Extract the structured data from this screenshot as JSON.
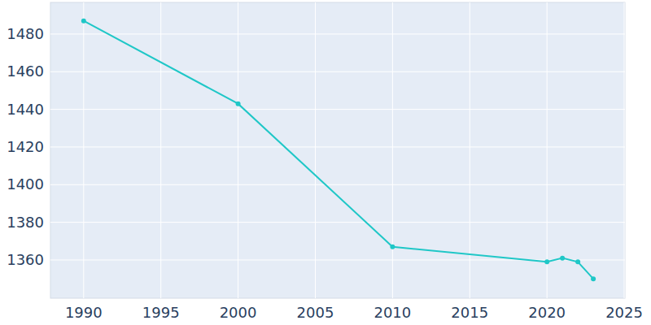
{
  "chart_data": {
    "type": "line",
    "x": [
      1990,
      2000,
      2010,
      2020,
      2021,
      2022,
      2023
    ],
    "values": [
      1487,
      1443,
      1367,
      1359,
      1361,
      1359,
      1350
    ],
    "color": "#1fc7c7",
    "marker": "circle",
    "xlim": [
      1987.85,
      2025.05
    ],
    "xticks": [
      1990,
      1995,
      2000,
      2005,
      2010,
      2015,
      2020,
      2025
    ],
    "ylim": [
      1339.7,
      1496.8
    ],
    "yticks": [
      1360,
      1380,
      1400,
      1420,
      1440,
      1460,
      1480
    ],
    "grid": true
  }
}
